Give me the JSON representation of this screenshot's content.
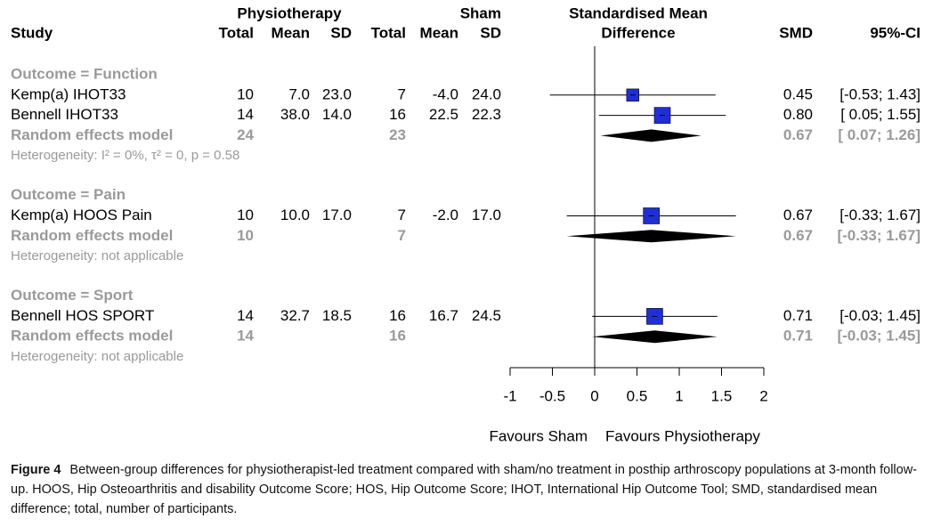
{
  "chart_data": {
    "type": "forest",
    "headers": {
      "study": "Study",
      "group1": "Physiotherapy",
      "group2": "Sham",
      "total": "Total",
      "mean": "Mean",
      "sd": "SD",
      "effect_line1": "Standardised Mean",
      "effect_line2": "Difference",
      "smd": "SMD",
      "ci": "95%-CI"
    },
    "groups": [
      {
        "label": "Outcome = Function",
        "studies": [
          {
            "name": "Kemp(a) IHOT33",
            "phys": [
              "10",
              "7.0",
              "23.0"
            ],
            "sham": [
              "7",
              "-4.0",
              "24.0"
            ],
            "smd": 0.45,
            "ci": [
              -0.53,
              1.43
            ],
            "smd_label": "0.45",
            "ci_label": "[-0.53; 1.43]"
          },
          {
            "name": "Bennell IHOT33",
            "phys": [
              "14",
              "38.0",
              "14.0"
            ],
            "sham": [
              "16",
              "22.5",
              "22.3"
            ],
            "smd": 0.8,
            "ci": [
              0.05,
              1.55
            ],
            "smd_label": "0.80",
            "ci_label": "[ 0.05; 1.55]"
          }
        ],
        "pooled": {
          "name": "Random effects model",
          "phys_total": "24",
          "sham_total": "23",
          "smd": 0.67,
          "ci": [
            0.07,
            1.26
          ],
          "smd_label": "0.67",
          "ci_label": "[ 0.07; 1.26]"
        },
        "heterogeneity": "Heterogeneity: I² = 0%, τ² = 0, p = 0.58"
      },
      {
        "label": "Outcome = Pain",
        "studies": [
          {
            "name": "Kemp(a) HOOS Pain",
            "phys": [
              "10",
              "10.0",
              "17.0"
            ],
            "sham": [
              "7",
              "-2.0",
              "17.0"
            ],
            "smd": 0.67,
            "ci": [
              -0.33,
              1.67
            ],
            "smd_label": "0.67",
            "ci_label": "[-0.33; 1.67]"
          }
        ],
        "pooled": {
          "name": "Random effects model",
          "phys_total": "10",
          "sham_total": "7",
          "smd": 0.67,
          "ci": [
            -0.33,
            1.67
          ],
          "smd_label": "0.67",
          "ci_label": "[-0.33; 1.67]"
        },
        "heterogeneity": "Heterogeneity: not applicable"
      },
      {
        "label": "Outcome = Sport",
        "studies": [
          {
            "name": "Bennell HOS SPORT",
            "phys": [
              "14",
              "32.7",
              "18.5"
            ],
            "sham": [
              "16",
              "16.7",
              "24.5"
            ],
            "smd": 0.71,
            "ci": [
              -0.03,
              1.45
            ],
            "smd_label": "0.71",
            "ci_label": "[-0.03; 1.45]"
          }
        ],
        "pooled": {
          "name": "Random effects model",
          "phys_total": "14",
          "sham_total": "16",
          "smd": 0.71,
          "ci": [
            -0.03,
            1.45
          ],
          "smd_label": "0.71",
          "ci_label": "[-0.03; 1.45]"
        },
        "heterogeneity": "Heterogeneity: not applicable"
      }
    ],
    "xlim": [
      -1,
      2
    ],
    "xticks": [
      -1,
      -0.5,
      0,
      0.5,
      1,
      1.5,
      2
    ],
    "x_label_left": "Favours Sham",
    "x_label_right": "Favours Physiotherapy",
    "box_color": "#1f2fd6",
    "caption_label": "Figure 4",
    "caption": "Between-group differences for physiotherapist-led treatment compared with sham/no treatment in posthip arthroscopy populations at 3-month follow-up. HOOS, Hip Osteoarthritis and disability Outcome Score; HOS, Hip Outcome Score; IHOT, International Hip Outcome Tool; SMD, standardised mean difference; total, number of participants."
  }
}
